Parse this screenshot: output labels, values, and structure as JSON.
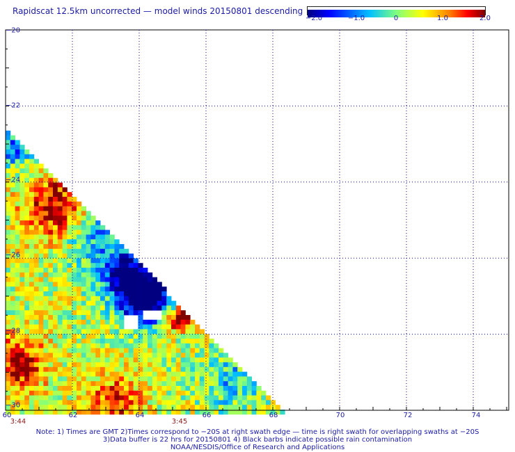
{
  "title": "Rapidscat 12.5km uncorrected — model winds 20150801 descending",
  "colorbar": {
    "ticks": [
      "−2.0",
      "−1.0",
      "0",
      "1.0",
      "2.0"
    ],
    "range": [
      -2.0,
      2.0
    ],
    "colors": [
      "#000080",
      "#0000ff",
      "#00bfff",
      "#7fff7f",
      "#ffff00",
      "#ff7f00",
      "#ff0000",
      "#800000"
    ]
  },
  "axes": {
    "lat_labels": [
      "−20",
      "−22",
      "−24",
      "−26",
      "−28",
      "−30"
    ],
    "lon_labels": [
      "60",
      "62",
      "64",
      "66",
      "68",
      "70",
      "72",
      "74"
    ],
    "lat_range": [
      -30,
      -20
    ],
    "lon_range": [
      60,
      75
    ]
  },
  "time_labels": [
    "3:44",
    "3:45"
  ],
  "notes": {
    "line1": "Note: 1) Times are GMT 2)Times correspond to −20S at right swath edge — time is right swath for overlapping swaths at −20S",
    "line2": "3)Data buffer is 22 hrs for 20150801 4) Black barbs indicate possible rain contamination",
    "line3": "NOAA/NESDIS/Office of Research and Applications"
  }
}
